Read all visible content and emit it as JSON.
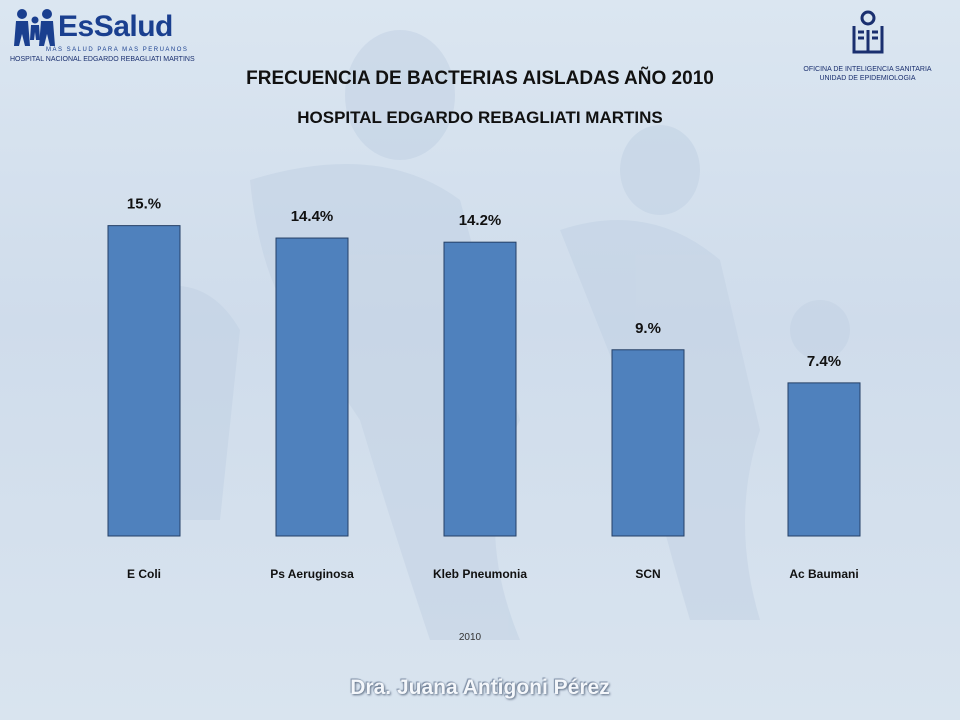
{
  "header": {
    "logo_left": {
      "brand": "EsSalud",
      "tagline": "MAS SALUD PARA MAS PERUANOS",
      "hospital": "HOSPITAL NACIONAL EDGARDO REBAGLIATI MARTINS"
    },
    "logo_right": {
      "line1": "OFICINA DE INTELIGENCIA SANITARIA",
      "line2": "UNIDAD DE EPIDEMIOLOGIA"
    }
  },
  "footer": {
    "author": "Dra. Juana Antigoni Pérez"
  },
  "colors": {
    "bar": "#4f81bd",
    "bar_stroke": "#243f66",
    "text": "#111111",
    "axis_label": "#333333"
  },
  "chart_data": {
    "type": "bar",
    "title": "FRECUENCIA DE BACTERIAS AISLADAS AÑO 2010",
    "subtitle": "HOSPITAL EDGARDO REBAGLIATI MARTINS",
    "xlabel": "2010",
    "ylabel": "",
    "categories": [
      "E Coli",
      "Ps Aeruginosa",
      "Kleb Pneumonia",
      "SCN",
      "Ac Baumani"
    ],
    "values": [
      15,
      14.4,
      14.2,
      9,
      7.4
    ],
    "data_labels": [
      "15.%",
      "14.4%",
      "14.2%",
      "9.%",
      "7.4%"
    ],
    "ylim": [
      0,
      15.9
    ],
    "grid": false,
    "legend": "none"
  }
}
